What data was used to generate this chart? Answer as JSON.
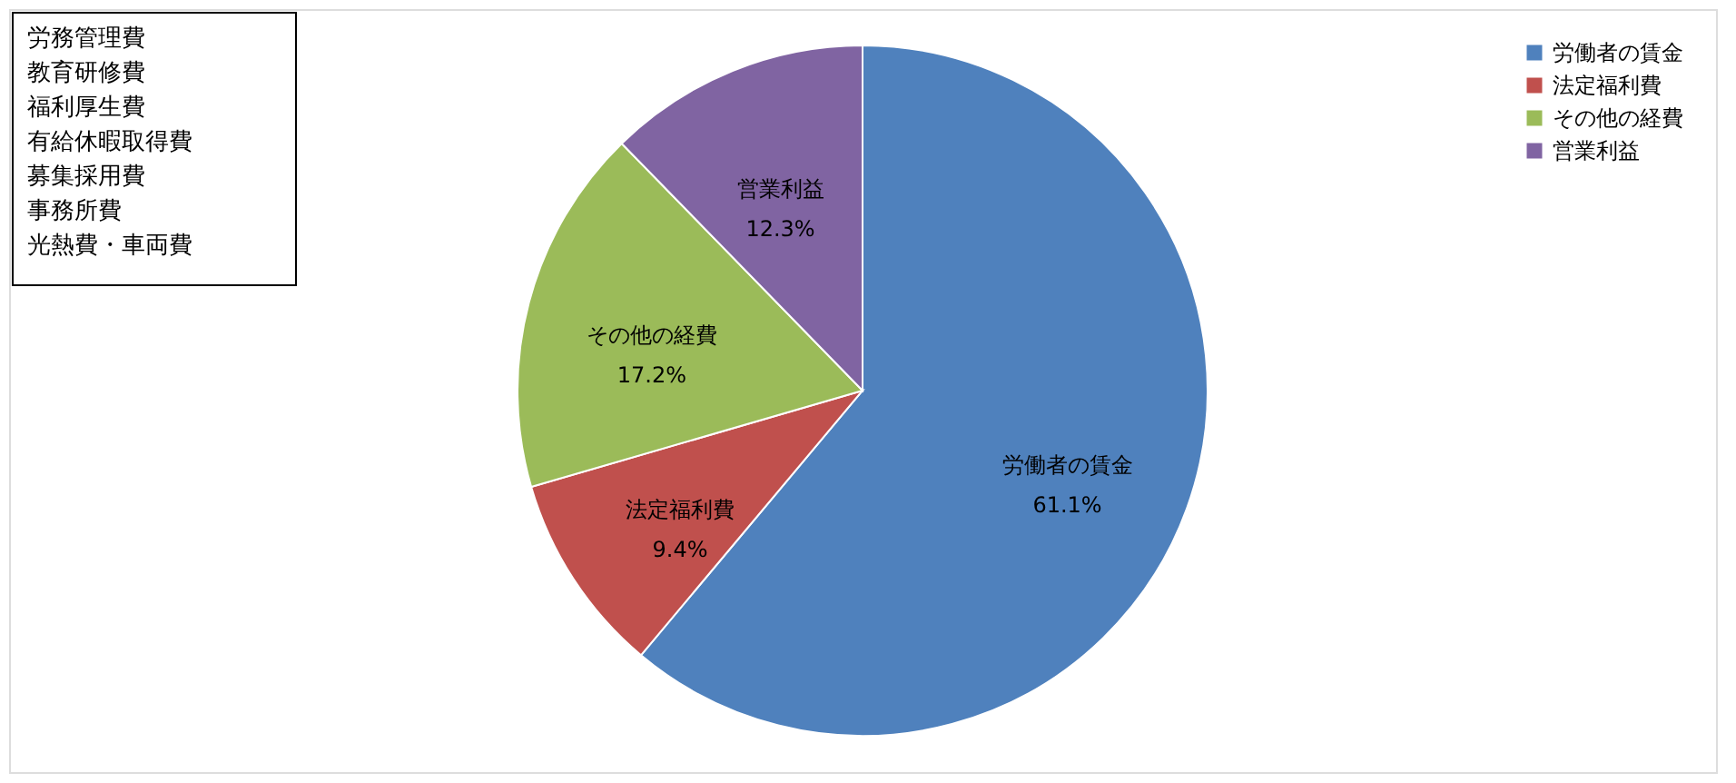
{
  "chart_data": {
    "type": "pie",
    "categories": [
      "労働者の賃金",
      "法定福利費",
      "その他の経費",
      "営業利益"
    ],
    "values": [
      61.1,
      9.4,
      17.2,
      12.3
    ],
    "colors": [
      "#4f81bd",
      "#c0504d",
      "#9bbb59",
      "#8064a2"
    ],
    "value_labels": [
      "61.1%",
      "9.4%",
      "17.2%",
      "12.3%"
    ],
    "legend": "top right",
    "annotations": [
      "労務管理費",
      "教育研修費",
      "福利厚生費",
      "有給休暇取得費",
      "募集採用費",
      "事務所費",
      "光熱費・車両費"
    ]
  }
}
